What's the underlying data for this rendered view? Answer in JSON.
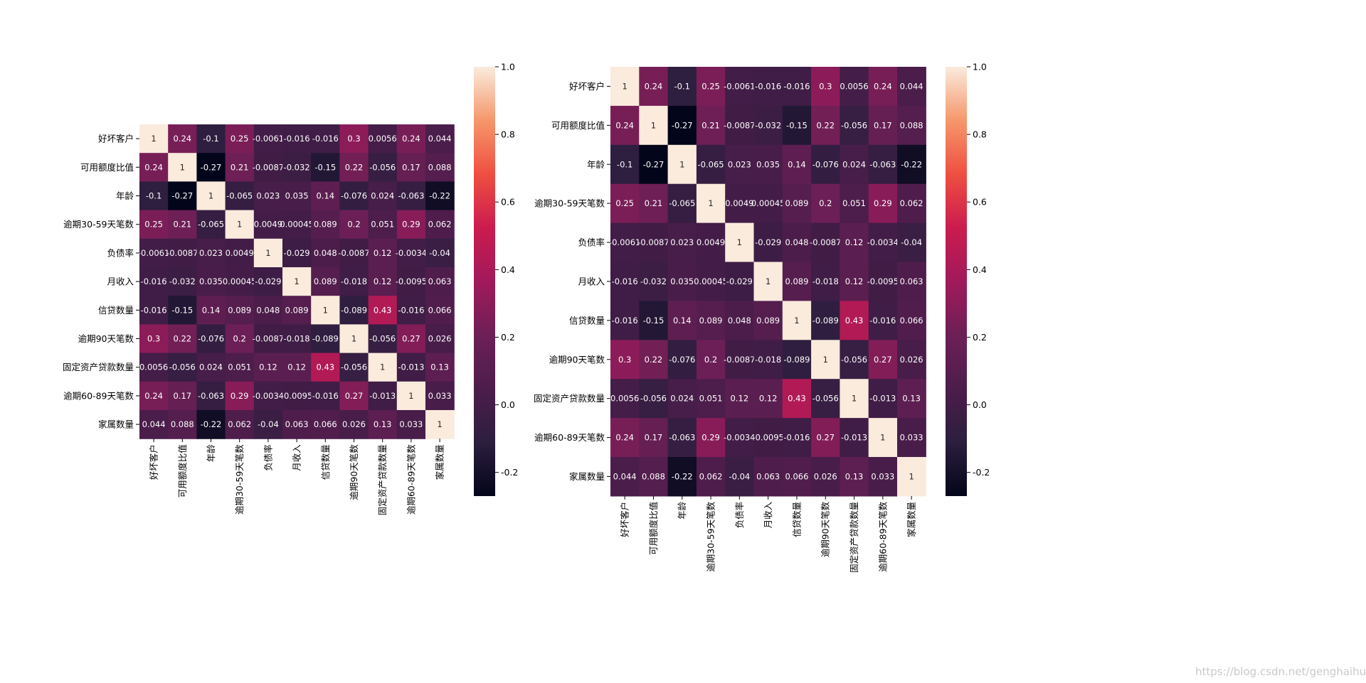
{
  "watermark": "https://blog.csdn.net/genghaihua",
  "chart_data": [
    {
      "type": "heatmap",
      "title": "",
      "xlabel": "",
      "ylabel": "",
      "labels": [
        "好坏客户",
        "可用额度比值",
        "年龄",
        "逾期30-59天笔数",
        "负债率",
        "月收入",
        "信贷数量",
        "逾期90天笔数",
        "固定资产贷款数量",
        "逾期60-89天笔数",
        "家属数量"
      ],
      "annotations": [
        [
          "1",
          "0.24",
          "-0.1",
          "0.25",
          "-0.0061",
          "-0.016",
          "-0.016",
          "0.3",
          "0.0056",
          "0.24",
          "0.044"
        ],
        [
          "0.24",
          "1",
          "-0.27",
          "0.21",
          "-0.0087",
          "-0.032",
          "-0.15",
          "0.22",
          "-0.056",
          "0.17",
          "0.088"
        ],
        [
          "-0.1",
          "-0.27",
          "1",
          "-0.065",
          "0.023",
          "0.035",
          "0.14",
          "-0.076",
          "0.024",
          "-0.063",
          "-0.22"
        ],
        [
          "0.25",
          "0.21",
          "-0.065",
          "1",
          "0.0049",
          "0.00045",
          "0.089",
          "0.2",
          "0.051",
          "0.29",
          "0.062"
        ],
        [
          "-0.0061",
          "-0.0087",
          "0.023",
          "0.0049",
          "1",
          "-0.029",
          "0.048",
          "-0.0087",
          "0.12",
          "-0.0034",
          "-0.04"
        ],
        [
          "-0.016",
          "-0.032",
          "0.035",
          "0.00045",
          "-0.029",
          "1",
          "0.089",
          "-0.018",
          "0.12",
          "-0.0095",
          "0.063"
        ],
        [
          "-0.016",
          "-0.15",
          "0.14",
          "0.089",
          "0.048",
          "0.089",
          "1",
          "-0.089",
          "0.43",
          "-0.016",
          "0.066"
        ],
        [
          "0.3",
          "0.22",
          "-0.076",
          "0.2",
          "-0.0087",
          "-0.018",
          "-0.089",
          "1",
          "-0.056",
          "0.27",
          "0.026"
        ],
        [
          "0.0056",
          "-0.056",
          "0.024",
          "0.051",
          "0.12",
          "0.12",
          "0.43",
          "-0.056",
          "1",
          "-0.013",
          "0.13"
        ],
        [
          "0.24",
          "0.17",
          "-0.063",
          "0.29",
          "-0.0034",
          "-0.0095",
          "-0.016",
          "0.27",
          "-0.013",
          "1",
          "0.033"
        ],
        [
          "0.044",
          "0.088",
          "-0.22",
          "0.062",
          "-0.04",
          "0.063",
          "0.066",
          "0.026",
          "0.13",
          "0.033",
          "1"
        ]
      ],
      "vmin": -0.27,
      "vmax": 1.0,
      "colormap": "rocket",
      "colorbar_ticks": [
        "1.0",
        "0.8",
        "0.6",
        "0.4",
        "0.2",
        "0.0",
        "-0.2"
      ],
      "annotation_color_dark": "#262626",
      "annotation_color_light": "#ffffff"
    },
    {
      "type": "heatmap",
      "title": "",
      "xlabel": "",
      "ylabel": "",
      "labels": [
        "好坏客户",
        "可用额度比值",
        "年龄",
        "逾期30-59天笔数",
        "负债率",
        "月收入",
        "信贷数量",
        "逾期90天笔数",
        "固定资产贷款数量",
        "逾期60-89天笔数",
        "家属数量"
      ],
      "annotations": [
        [
          "1",
          "0.24",
          "-0.1",
          "0.25",
          "-0.0061",
          "-0.016",
          "-0.016",
          "0.3",
          "0.0056",
          "0.24",
          "0.044"
        ],
        [
          "0.24",
          "1",
          "-0.27",
          "0.21",
          "-0.0087",
          "-0.032",
          "-0.15",
          "0.22",
          "-0.056",
          "0.17",
          "0.088"
        ],
        [
          "-0.1",
          "-0.27",
          "1",
          "-0.065",
          "0.023",
          "0.035",
          "0.14",
          "-0.076",
          "0.024",
          "-0.063",
          "-0.22"
        ],
        [
          "0.25",
          "0.21",
          "-0.065",
          "1",
          "0.0049",
          "0.00045",
          "0.089",
          "0.2",
          "0.051",
          "0.29",
          "0.062"
        ],
        [
          "-0.0061",
          "-0.0087",
          "0.023",
          "0.0049",
          "1",
          "-0.029",
          "0.048",
          "-0.0087",
          "0.12",
          "-0.0034",
          "-0.04"
        ],
        [
          "-0.016",
          "-0.032",
          "0.035",
          "0.00045",
          "-0.029",
          "1",
          "0.089",
          "-0.018",
          "0.12",
          "-0.0095",
          "0.063"
        ],
        [
          "-0.016",
          "-0.15",
          "0.14",
          "0.089",
          "0.048",
          "0.089",
          "1",
          "-0.089",
          "0.43",
          "-0.016",
          "0.066"
        ],
        [
          "0.3",
          "0.22",
          "-0.076",
          "0.2",
          "-0.0087",
          "-0.018",
          "-0.089",
          "1",
          "-0.056",
          "0.27",
          "0.026"
        ],
        [
          "0.0056",
          "-0.056",
          "0.024",
          "0.051",
          "0.12",
          "0.12",
          "0.43",
          "-0.056",
          "1",
          "-0.013",
          "0.13"
        ],
        [
          "0.24",
          "0.17",
          "-0.063",
          "0.29",
          "-0.0034",
          "-0.0095",
          "-0.016",
          "0.27",
          "-0.013",
          "1",
          "0.033"
        ],
        [
          "0.044",
          "0.088",
          "-0.22",
          "0.062",
          "-0.04",
          "0.063",
          "0.066",
          "0.026",
          "0.13",
          "0.033",
          "1"
        ]
      ],
      "vmin": -0.27,
      "vmax": 1.0,
      "colormap": "rocket",
      "colorbar_ticks": [
        "1.0",
        "0.8",
        "0.6",
        "0.4",
        "0.2",
        "0.0",
        "-0.2"
      ],
      "annotation_color_dark": "#262626",
      "annotation_color_light": "#ffffff"
    }
  ]
}
